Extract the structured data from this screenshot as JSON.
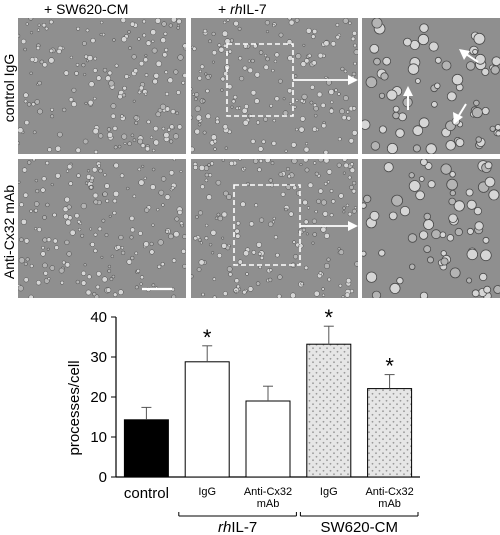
{
  "micrographs": {
    "columns": [
      {
        "prefix": "+ ",
        "italic": "",
        "suffix": "SW620-CM"
      },
      {
        "prefix": "+ ",
        "italic": "rh",
        "suffix": "IL-7"
      }
    ],
    "rows": [
      "control IgG",
      "Anti-Cx32 mAb"
    ]
  },
  "colors": {
    "micrograph_bg": "#8f8f8f",
    "cell": "#d6d6d6",
    "cell_edge": "#4a4a4a",
    "annotation": "#ffffff",
    "bar_control": "#000000",
    "bar_rhil7": "#ffffff",
    "bar_sw620": "#e6e6e6",
    "stipple": "#9a9a9a"
  },
  "chart_data": {
    "type": "bar",
    "ylabel": "processes/cell",
    "ylim": [
      0,
      40
    ],
    "yticks": [
      0,
      10,
      20,
      30,
      40
    ],
    "categories": [
      "control",
      "IgG",
      "Anti-Cx32 mAb",
      "IgG",
      "Anti-Cx32 mAb"
    ],
    "values": [
      14.3,
      28.8,
      19.0,
      33.2,
      22.1
    ],
    "errors": [
      3.1,
      4.0,
      3.7,
      4.5,
      3.5
    ],
    "significant": [
      false,
      true,
      false,
      true,
      true
    ],
    "significance_marker": "*",
    "fills": [
      "#000000",
      "#ffffff",
      "#ffffff",
      "#e6e6e6",
      "#e6e6e6"
    ],
    "stippled": [
      false,
      false,
      false,
      true,
      true
    ],
    "tick_labels": [
      [
        "control"
      ],
      [
        "IgG"
      ],
      [
        "Anti-Cx32",
        "mAb"
      ],
      [
        "IgG"
      ],
      [
        "Anti-Cx32",
        "mAb"
      ]
    ],
    "groups": [
      {
        "label_italic": "rh",
        "label_rest": "IL-7",
        "members": [
          1,
          2
        ]
      },
      {
        "label_italic": "",
        "label_rest": "SW620-CM",
        "members": [
          3,
          4
        ]
      }
    ]
  }
}
